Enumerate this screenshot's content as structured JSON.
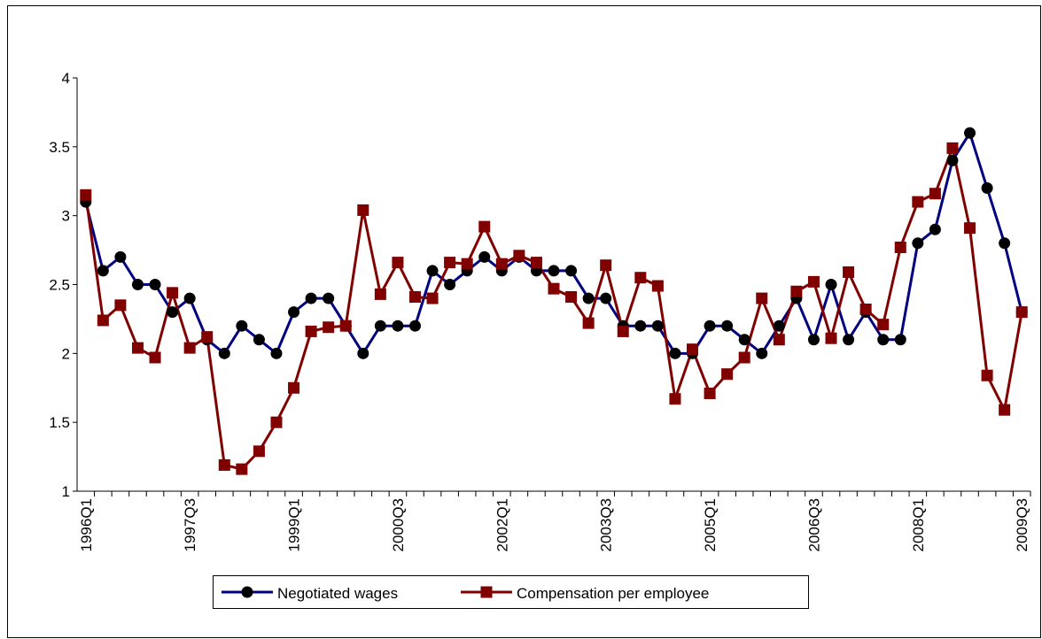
{
  "chart_data": {
    "type": "line",
    "categories": [
      "1996Q1",
      null,
      null,
      null,
      null,
      null,
      "1997Q3",
      null,
      null,
      null,
      null,
      null,
      "1999Q1",
      null,
      null,
      null,
      null,
      null,
      "2000Q3",
      null,
      null,
      null,
      null,
      null,
      "2002Q1",
      null,
      null,
      null,
      null,
      null,
      "2003Q3",
      null,
      null,
      null,
      null,
      null,
      "2005Q1",
      null,
      null,
      null,
      null,
      null,
      "2006Q3",
      null,
      null,
      null,
      null,
      null,
      "2008Q1",
      null,
      null,
      null,
      null,
      null,
      "2009Q3"
    ],
    "series": [
      {
        "name": "Negotiated wages",
        "color": "#000080",
        "marker": "circle",
        "marker_color": "#000000",
        "values": [
          3.1,
          2.6,
          2.7,
          2.5,
          2.5,
          2.3,
          2.4,
          2.1,
          2.0,
          2.2,
          2.1,
          2.0,
          2.3,
          2.4,
          2.4,
          2.2,
          2.0,
          2.2,
          2.2,
          2.2,
          2.6,
          2.5,
          2.6,
          2.7,
          2.6,
          2.7,
          2.6,
          2.6,
          2.6,
          2.4,
          2.4,
          2.2,
          2.2,
          2.2,
          2.0,
          2.0,
          2.2,
          2.2,
          2.1,
          2.0,
          2.2,
          2.4,
          2.1,
          2.5,
          2.1,
          2.3,
          2.1,
          2.1,
          2.8,
          2.9,
          3.4,
          3.6,
          3.2,
          2.8,
          2.3
        ]
      },
      {
        "name": "Compensation per employee",
        "color": "#800000",
        "marker": "square",
        "marker_color": "#800000",
        "values": [
          3.15,
          2.24,
          2.35,
          2.04,
          1.97,
          2.44,
          2.04,
          2.12,
          1.19,
          1.16,
          1.29,
          1.5,
          1.75,
          2.16,
          2.19,
          2.2,
          3.04,
          2.43,
          2.66,
          2.41,
          2.4,
          2.66,
          2.65,
          2.92,
          2.65,
          2.71,
          2.66,
          2.47,
          2.41,
          2.22,
          2.64,
          2.16,
          2.55,
          2.49,
          1.67,
          2.03,
          1.71,
          1.85,
          1.97,
          2.4,
          2.1,
          2.45,
          2.52,
          2.11,
          2.59,
          2.32,
          2.21,
          2.77,
          3.1,
          3.16,
          3.49,
          2.91,
          1.84,
          1.59,
          2.3
        ]
      }
    ],
    "ylim": [
      1,
      4
    ],
    "yticks": [
      1,
      1.5,
      2,
      2.5,
      3,
      3.5,
      4
    ],
    "grid": false,
    "legend": "bottom"
  }
}
